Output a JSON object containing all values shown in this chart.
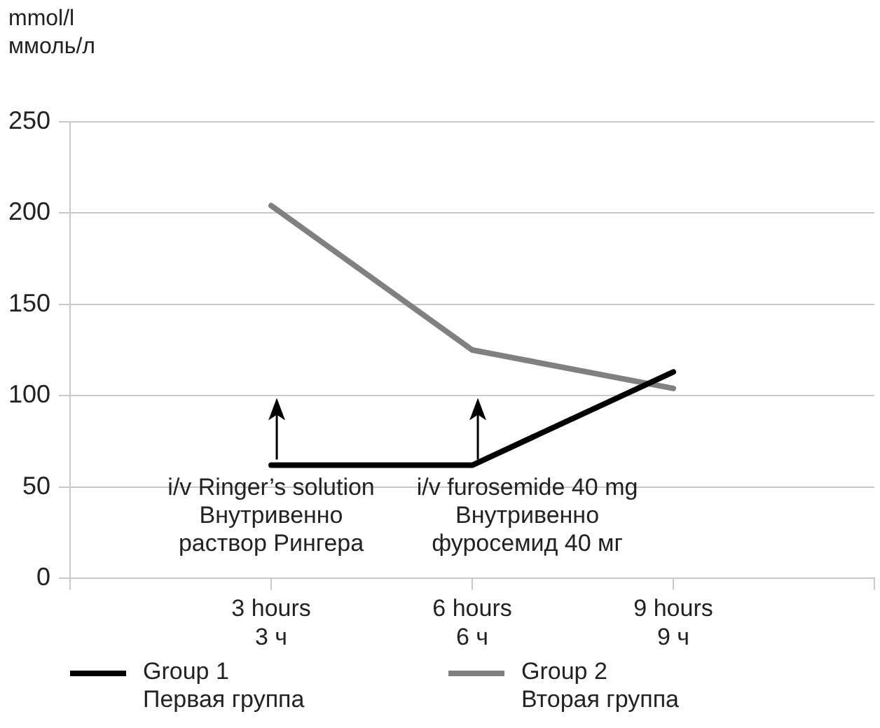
{
  "chart_data": {
    "type": "line",
    "ylabel": "mmol/l\nммоль/л",
    "categories": [
      null,
      "3 hours\n3 ч",
      "6 hours\n6 ч",
      "9 hours\n9 ч",
      null
    ],
    "series": [
      {
        "name": "Group 1\nПервая группа",
        "color": "#000000",
        "values": [
          null,
          62,
          62,
          113,
          null
        ]
      },
      {
        "name": "Group 2\nВторая группа",
        "color": "#808080",
        "values": [
          null,
          204,
          125,
          104,
          null
        ]
      }
    ],
    "ylim": [
      0,
      250
    ],
    "yticks": [
      0,
      50,
      100,
      150,
      200,
      250
    ],
    "grid": "y",
    "legend": "bottom",
    "marker": "none",
    "line_style": "solid",
    "annotations": [
      {
        "text": "i/v Ringer’s solution\nВнутривенно\nраствор Рингера",
        "x": "3 hours\n3 ч",
        "y": 62
      },
      {
        "text": "i/v furosemide 40 mg\nВнутривенно\nфуросемид 40 мг",
        "x": "6 hours\n6 ч",
        "y": 62
      }
    ]
  }
}
